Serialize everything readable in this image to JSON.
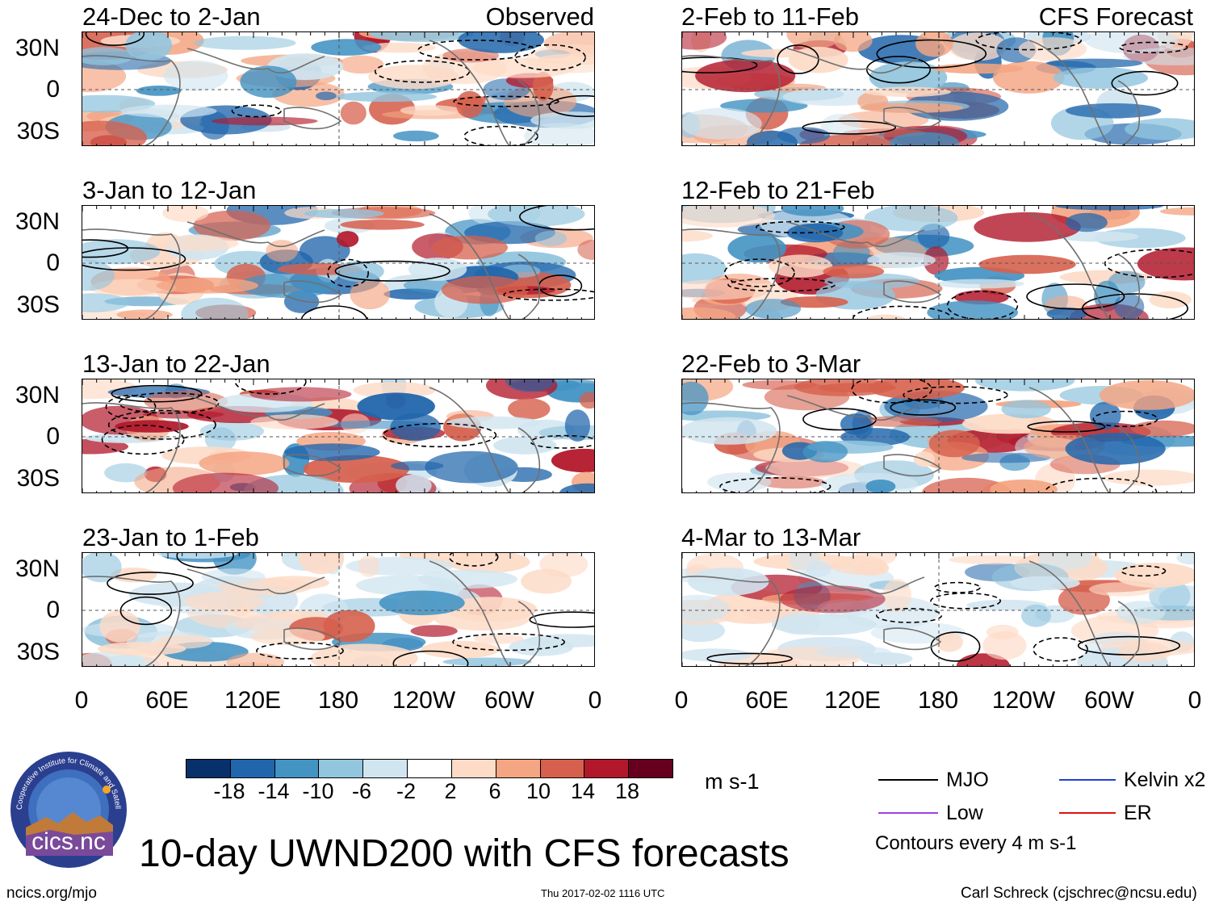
{
  "title": "10-day UWND200 with CFS forecasts",
  "footer": {
    "left": "ncics.org/mjo",
    "center": "Thu 2017-02-02 1116 UTC",
    "right": "Carl Schreck (cjschrec@ncsu.edu)"
  },
  "logo": {
    "text": "cics.nc",
    "ring_text": "Cooperative Institute for Climate and Satellites"
  },
  "columns": {
    "left_label": "Observed",
    "right_label": "CFS Forecast"
  },
  "panels_left": [
    {
      "title": "24-Dec to 2-Jan"
    },
    {
      "title": "3-Jan to 12-Jan"
    },
    {
      "title": "13-Jan to 22-Jan"
    },
    {
      "title": "23-Jan to 1-Feb"
    }
  ],
  "panels_right": [
    {
      "title": "2-Feb to 11-Feb"
    },
    {
      "title": "12-Feb to 21-Feb"
    },
    {
      "title": "22-Feb to 3-Mar"
    },
    {
      "title": "4-Mar to 13-Mar"
    }
  ],
  "lat_labels": [
    "30N",
    "0",
    "30S"
  ],
  "lon_labels": [
    "0",
    "60E",
    "120E",
    "180",
    "120W",
    "60W",
    "0"
  ],
  "colorbar": {
    "unit": "m s-1",
    "ticks": [
      "-18",
      "-14",
      "-10",
      "-6",
      "-2",
      "2",
      "6",
      "10",
      "14",
      "18"
    ],
    "colors": [
      "#08306b",
      "#2166ac",
      "#4393c3",
      "#92c5de",
      "#d1e5f0",
      "#ffffff",
      "#fddbc7",
      "#f4a582",
      "#d6604d",
      "#b2182b",
      "#67001f"
    ]
  },
  "legend": {
    "items": [
      {
        "label": "MJO",
        "color": "#000000"
      },
      {
        "label": "Kelvin x2",
        "color": "#1f3fd8"
      },
      {
        "label": "Low",
        "color": "#a040e0"
      },
      {
        "label": "ER",
        "color": "#e01010"
      }
    ],
    "note": "Contours every 4 m s-1"
  }
}
